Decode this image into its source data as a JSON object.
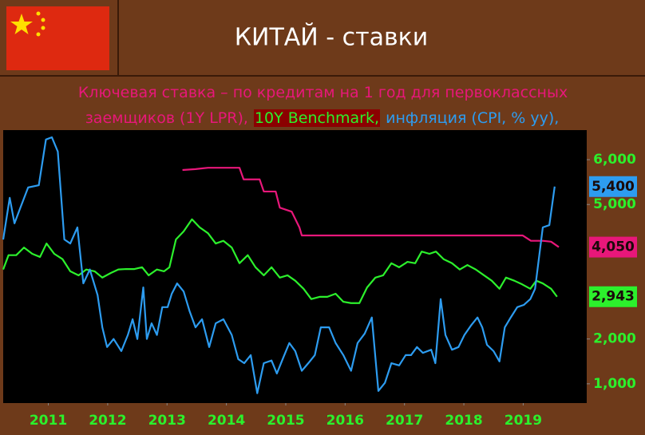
{
  "chart_data": {
    "type": "line",
    "title": "КИТАЙ - ставки",
    "xlim": [
      2010.74,
      2020.57
    ],
    "xticks": [
      {
        "value": 2011.5,
        "label": "2011"
      },
      {
        "value": 2012.5,
        "label": "2012"
      },
      {
        "value": 2013.5,
        "label": "2013"
      },
      {
        "value": 2014.5,
        "label": "2014"
      },
      {
        "value": 2015.5,
        "label": "2015"
      },
      {
        "value": 2016.5,
        "label": "2016"
      },
      {
        "value": 2017.5,
        "label": "2017"
      },
      {
        "value": 2018.5,
        "label": "2018"
      },
      {
        "value": 2019.5,
        "label": "2019"
      }
    ],
    "ylim": [
      570,
      6660
    ],
    "yticks": [
      {
        "value": 1000,
        "label": "1,000"
      },
      {
        "value": 2000,
        "label": "2,000"
      },
      {
        "value": 5000,
        "label": "5,000"
      },
      {
        "value": 6000,
        "label": "6,000"
      }
    ],
    "series": [
      {
        "name": "Ключевая ставка – по кредитам на 1 год для первоклассных заемщиков (1Y LPR),",
        "color": "#e8177a",
        "x": [
          2013.76,
          2013.98,
          2014.19,
          2014.72,
          2014.79,
          2015.06,
          2015.13,
          2015.33,
          2015.4,
          2015.6,
          2015.73,
          2015.77,
          2019.49,
          2019.63,
          2019.83,
          2019.97,
          2020.1
        ],
        "values": [
          5770,
          5790,
          5820,
          5820,
          5560,
          5560,
          5290,
          5290,
          4930,
          4840,
          4490,
          4310,
          4310,
          4190,
          4190,
          4170,
          4050
        ],
        "value_labels": [
          null,
          null,
          null,
          null,
          null,
          null,
          null,
          null,
          null,
          null,
          null,
          null,
          null,
          null,
          null,
          null,
          "4,050"
        ]
      },
      {
        "name": "10Y Benchmark,",
        "color": "#2cf02c",
        "x": [
          2010.74,
          2010.83,
          2010.96,
          2011.09,
          2011.23,
          2011.36,
          2011.47,
          2011.6,
          2011.74,
          2011.87,
          2012.01,
          2012.14,
          2012.28,
          2012.41,
          2012.55,
          2012.68,
          2012.81,
          2012.95,
          2013.08,
          2013.19,
          2013.33,
          2013.45,
          2013.54,
          2013.65,
          2013.78,
          2013.92,
          2014.05,
          2014.19,
          2014.32,
          2014.45,
          2014.59,
          2014.72,
          2014.86,
          2014.99,
          2015.13,
          2015.26,
          2015.4,
          2015.53,
          2015.66,
          2015.8,
          2015.93,
          2016.07,
          2016.2,
          2016.34,
          2016.47,
          2016.6,
          2016.74,
          2016.87,
          2017.01,
          2017.14,
          2017.28,
          2017.41,
          2017.55,
          2017.68,
          2017.79,
          2017.92,
          2018.03,
          2018.16,
          2018.3,
          2018.43,
          2018.56,
          2018.7,
          2018.84,
          2018.97,
          2019.1,
          2019.21,
          2019.35,
          2019.48,
          2019.62,
          2019.72,
          2019.83,
          2019.97,
          2020.07
        ],
        "values": [
          3550,
          3870,
          3870,
          4040,
          3900,
          3830,
          4130,
          3900,
          3780,
          3510,
          3420,
          3550,
          3510,
          3370,
          3470,
          3550,
          3560,
          3560,
          3600,
          3420,
          3550,
          3510,
          3600,
          4220,
          4400,
          4670,
          4490,
          4360,
          4130,
          4190,
          4040,
          3690,
          3870,
          3600,
          3420,
          3600,
          3370,
          3420,
          3300,
          3120,
          2890,
          2940,
          2940,
          3010,
          2830,
          2800,
          2800,
          3150,
          3370,
          3420,
          3690,
          3600,
          3720,
          3690,
          3950,
          3900,
          3950,
          3780,
          3690,
          3550,
          3650,
          3550,
          3420,
          3300,
          3120,
          3370,
          3300,
          3220,
          3120,
          3300,
          3240,
          3120,
          2943
        ],
        "value_labels": [
          null,
          null,
          null,
          null,
          null,
          null,
          null,
          null,
          null,
          null,
          null,
          null,
          null,
          null,
          null,
          null,
          null,
          null,
          null,
          null,
          null,
          null,
          null,
          null,
          null,
          null,
          null,
          null,
          null,
          null,
          null,
          null,
          null,
          null,
          null,
          null,
          null,
          null,
          null,
          null,
          null,
          null,
          null,
          null,
          null,
          null,
          null,
          null,
          null,
          null,
          null,
          null,
          null,
          null,
          null,
          null,
          null,
          null,
          null,
          null,
          null,
          null,
          null,
          null,
          null,
          null,
          null,
          null,
          null,
          null,
          null,
          null,
          "2,943"
        ]
      },
      {
        "name": "инфляция (CPI, % yy),",
        "color": "#2d9cf0",
        "x": [
          2010.74,
          2010.85,
          2010.93,
          2011.03,
          2011.16,
          2011.34,
          2011.46,
          2011.56,
          2011.66,
          2011.77,
          2011.87,
          2011.99,
          2012.09,
          2012.2,
          2012.33,
          2012.41,
          2012.49,
          2012.6,
          2012.73,
          2012.84,
          2012.92,
          2013,
          2013.1,
          2013.16,
          2013.24,
          2013.33,
          2013.42,
          2013.51,
          2013.58,
          2013.67,
          2013.78,
          2013.88,
          2013.98,
          2014.09,
          2014.21,
          2014.32,
          2014.45,
          2014.59,
          2014.7,
          2014.8,
          2014.91,
          2015.02,
          2015.13,
          2015.26,
          2015.35,
          2015.46,
          2015.56,
          2015.66,
          2015.77,
          2015.88,
          2015.99,
          2016.09,
          2016.23,
          2016.34,
          2016.47,
          2016.6,
          2016.71,
          2016.83,
          2016.95,
          2017.06,
          2017.17,
          2017.28,
          2017.41,
          2017.52,
          2017.61,
          2017.71,
          2017.81,
          2017.95,
          2018.02,
          2018.11,
          2018.19,
          2018.3,
          2018.41,
          2018.51,
          2018.62,
          2018.73,
          2018.81,
          2018.89,
          2019,
          2019.1,
          2019.19,
          2019.29,
          2019.4,
          2019.51,
          2019.62,
          2019.7,
          2019.83,
          2019.94,
          2020.03
        ],
        "values": [
          4220,
          5150,
          4580,
          4930,
          5380,
          5430,
          6450,
          6500,
          6180,
          4220,
          4130,
          4490,
          3240,
          3550,
          2980,
          2260,
          1820,
          2000,
          1730,
          2090,
          2440,
          2000,
          3150,
          2000,
          2350,
          2090,
          2710,
          2710,
          3010,
          3240,
          3060,
          2620,
          2260,
          2440,
          1820,
          2350,
          2440,
          2090,
          1550,
          1460,
          1640,
          790,
          1460,
          1520,
          1230,
          1590,
          1910,
          1730,
          1290,
          1460,
          1640,
          2260,
          2260,
          1910,
          1640,
          1290,
          1910,
          2120,
          2480,
          840,
          1020,
          1460,
          1410,
          1640,
          1640,
          1820,
          1690,
          1760,
          1460,
          2890,
          2090,
          1760,
          1820,
          2090,
          2300,
          2480,
          2260,
          1870,
          1730,
          1500,
          2260,
          2480,
          2710,
          2760,
          2890,
          3120,
          4490,
          4540,
          5400
        ],
        "value_labels": [
          null,
          null,
          null,
          null,
          null,
          null,
          null,
          null,
          null,
          null,
          null,
          null,
          null,
          null,
          null,
          null,
          null,
          null,
          null,
          null,
          null,
          null,
          null,
          null,
          null,
          null,
          null,
          null,
          null,
          null,
          null,
          null,
          null,
          null,
          null,
          null,
          null,
          null,
          null,
          null,
          null,
          null,
          null,
          null,
          null,
          null,
          null,
          null,
          null,
          null,
          null,
          null,
          null,
          null,
          null,
          null,
          null,
          null,
          null,
          null,
          null,
          null,
          null,
          null,
          null,
          null,
          null,
          null,
          null,
          null,
          null,
          null,
          null,
          null,
          null,
          null,
          null,
          null,
          null,
          null,
          null,
          null,
          null,
          null,
          null,
          null,
          null,
          null,
          "5,400"
        ]
      }
    ]
  }
}
